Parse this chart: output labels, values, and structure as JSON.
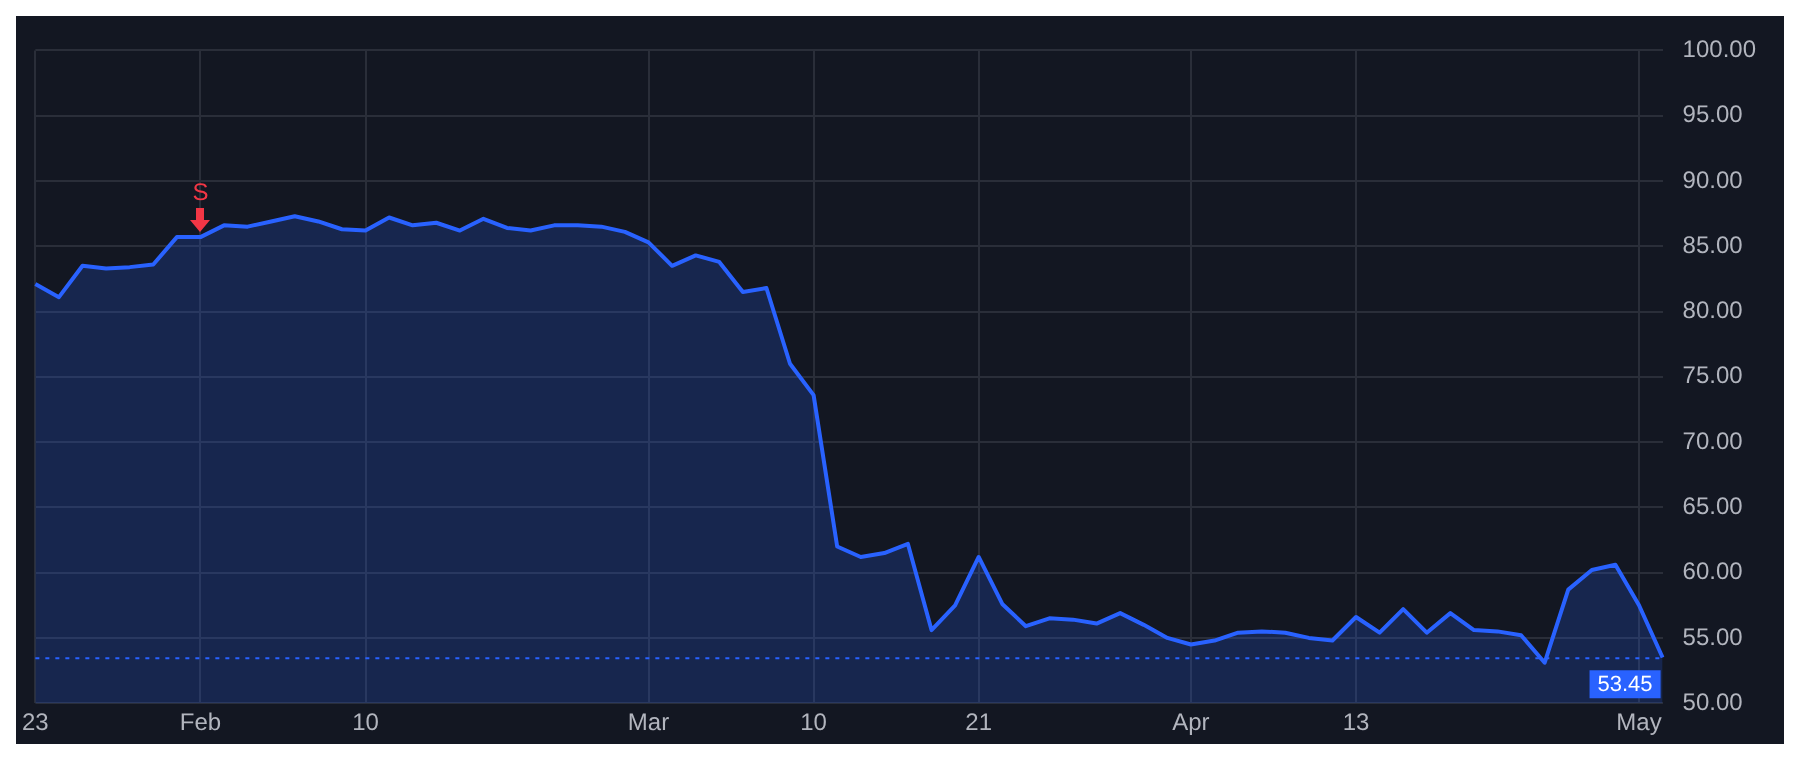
{
  "chart_data": {
    "type": "area",
    "categories": [
      "23",
      null,
      null,
      null,
      null,
      null,
      null,
      "Feb",
      null,
      null,
      null,
      null,
      null,
      null,
      "10",
      null,
      null,
      null,
      null,
      null,
      null,
      null,
      null,
      null,
      null,
      null,
      "Mar",
      null,
      null,
      null,
      null,
      null,
      null,
      "10",
      null,
      null,
      null,
      null,
      null,
      null,
      "21",
      null,
      null,
      null,
      null,
      null,
      null,
      null,
      null,
      "Apr",
      null,
      null,
      null,
      null,
      null,
      null,
      "13",
      null,
      null,
      null,
      null,
      null,
      null,
      null,
      null,
      null,
      null,
      null,
      "May",
      null
    ],
    "series": [
      {
        "color": "#2962ff",
        "values": [
          82.1,
          81.1,
          83.5,
          83.3,
          83.4,
          83.6,
          85.7,
          85.7,
          86.6,
          86.5,
          86.9,
          87.3,
          86.9,
          86.3,
          86.2,
          87.2,
          86.6,
          86.8,
          86.2,
          87.1,
          86.4,
          86.2,
          86.6,
          86.6,
          86.5,
          86.1,
          85.3,
          83.5,
          84.3,
          83.8,
          81.5,
          81.8,
          76.0,
          73.6,
          62.0,
          61.2,
          61.5,
          62.2,
          55.6,
          57.5,
          61.2,
          57.6,
          55.9,
          56.5,
          56.4,
          56.1,
          56.9,
          56.0,
          55.0,
          54.5,
          54.8,
          55.4,
          55.5,
          55.4,
          55.0,
          54.8,
          56.6,
          55.4,
          57.2,
          55.4,
          56.9,
          55.6,
          55.5,
          55.2,
          53.1,
          58.7,
          60.2,
          60.6,
          57.5,
          53.5
        ]
      }
    ],
    "ylim": [
      50,
      100
    ],
    "yticks": [
      {
        "value": 50,
        "label": "50.00"
      },
      {
        "value": 55,
        "label": "55.00"
      },
      {
        "value": 60,
        "label": "60.00"
      },
      {
        "value": 65,
        "label": "65.00"
      },
      {
        "value": 70,
        "label": "70.00"
      },
      {
        "value": 75,
        "label": "75.00"
      },
      {
        "value": 80,
        "label": "80.00"
      },
      {
        "value": 85,
        "label": "85.00"
      },
      {
        "value": 90,
        "label": "90.00"
      },
      {
        "value": 95,
        "label": "95.00"
      },
      {
        "value": 100,
        "label": "100.00"
      }
    ],
    "ref_lines": [
      {
        "axis": "y",
        "value": 53.45,
        "label": "53.45",
        "color": "#2962ff",
        "line_style": "dotted"
      }
    ],
    "annotations": [
      {
        "text": "S",
        "x": "Feb",
        "y": 85.7
      }
    ],
    "grid": true,
    "legend": false
  }
}
